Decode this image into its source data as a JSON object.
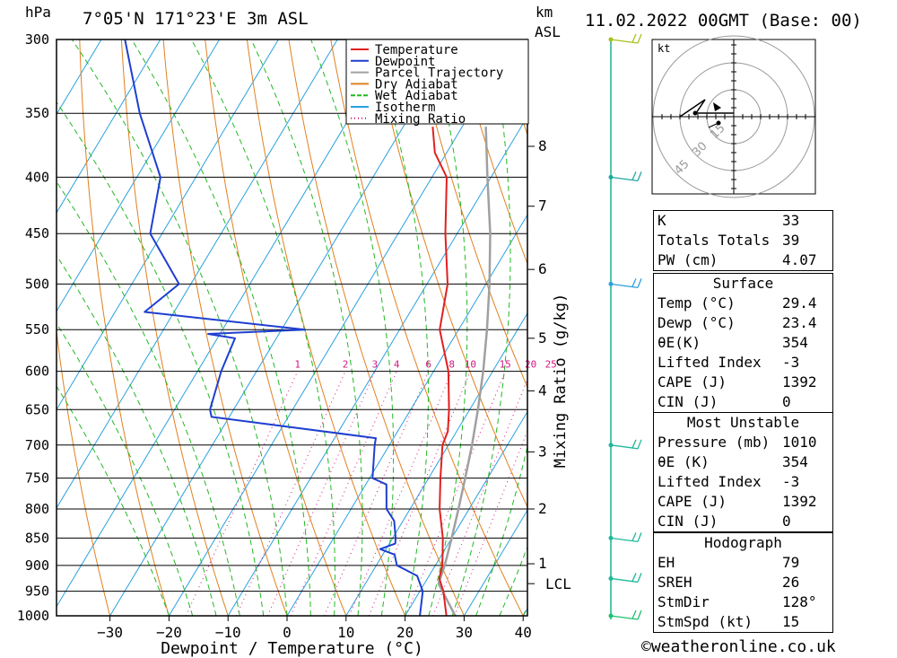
{
  "header": {
    "location": "7°05'N  171°23'E  3m  ASL",
    "date": "11.02.2022  00GMT  (Base: 00)",
    "hpa_label": "hPa",
    "km_label": "km",
    "asl_label": "ASL"
  },
  "chart_data": {
    "type": "skew-t",
    "xlabel": "Dewpoint / Temperature (°C)",
    "ylabel": "Mixing Ratio (g/kg)",
    "x_ticks": [
      -30,
      -20,
      -10,
      0,
      10,
      20,
      30,
      40
    ],
    "pressure_levels": [
      300,
      350,
      400,
      450,
      500,
      550,
      600,
      650,
      700,
      750,
      800,
      850,
      900,
      950,
      1000
    ],
    "km_ticks": [
      {
        "label": "8",
        "p": 375
      },
      {
        "label": "7",
        "p": 425
      },
      {
        "label": "6",
        "p": 485
      },
      {
        "label": "5",
        "p": 560
      },
      {
        "label": "4",
        "p": 625
      },
      {
        "label": "3",
        "p": 710
      },
      {
        "label": "2",
        "p": 800
      },
      {
        "label": "1",
        "p": 897
      }
    ],
    "lcl": {
      "label": "LCL",
      "p": 935
    },
    "mixing_ratio_labels": [
      "1",
      "2",
      "3",
      "4",
      "6",
      "8",
      "10",
      "15",
      "20",
      "25"
    ],
    "legend": [
      {
        "name": "Temperature",
        "color": "#e02020"
      },
      {
        "name": "Dewpoint",
        "color": "#1f3fd0"
      },
      {
        "name": "Parcel Trajectory",
        "color": "#a0a0a0"
      },
      {
        "name": "Dry Adiabat",
        "color": "#e08020"
      },
      {
        "name": "Wet Adiabat",
        "color": "#22b822"
      },
      {
        "name": "Isotherm",
        "color": "#2aa0e0"
      },
      {
        "name": "Mixing Ratio",
        "color": "#d01880"
      }
    ],
    "temperature": [
      {
        "p": 1010,
        "t": 29.4
      },
      {
        "p": 1000,
        "t": 27.0
      },
      {
        "p": 950,
        "t": 24.0
      },
      {
        "p": 925,
        "t": 22.0
      },
      {
        "p": 900,
        "t": 21.2
      },
      {
        "p": 850,
        "t": 18.5
      },
      {
        "p": 800,
        "t": 15.0
      },
      {
        "p": 750,
        "t": 12.0
      },
      {
        "p": 700,
        "t": 9.0
      },
      {
        "p": 680,
        "t": 8.5
      },
      {
        "p": 650,
        "t": 6.5
      },
      {
        "p": 600,
        "t": 2.5
      },
      {
        "p": 550,
        "t": -3.2
      },
      {
        "p": 500,
        "t": -6.5
      },
      {
        "p": 450,
        "t": -12.0
      },
      {
        "p": 400,
        "t": -17.5
      },
      {
        "p": 380,
        "t": -22.0
      },
      {
        "p": 360,
        "t": -25.0
      }
    ],
    "dewpoint": [
      {
        "p": 1010,
        "t": 23.4
      },
      {
        "p": 1000,
        "t": 22.5
      },
      {
        "p": 950,
        "t": 20.5
      },
      {
        "p": 920,
        "t": 18.0
      },
      {
        "p": 900,
        "t": 13.5
      },
      {
        "p": 880,
        "t": 12.0
      },
      {
        "p": 870,
        "t": 9.0
      },
      {
        "p": 860,
        "t": 11.0
      },
      {
        "p": 850,
        "t": 10.5
      },
      {
        "p": 820,
        "t": 8.5
      },
      {
        "p": 800,
        "t": 6.0
      },
      {
        "p": 760,
        "t": 3.5
      },
      {
        "p": 750,
        "t": 0.5
      },
      {
        "p": 700,
        "t": -2.5
      },
      {
        "p": 690,
        "t": -3.0
      },
      {
        "p": 660,
        "t": -33.0
      },
      {
        "p": 650,
        "t": -34.0
      },
      {
        "p": 600,
        "t": -36.0
      },
      {
        "p": 560,
        "t": -37.0
      },
      {
        "p": 555,
        "t": -42.0
      },
      {
        "p": 550,
        "t": -26.0
      },
      {
        "p": 530,
        "t": -55.0
      },
      {
        "p": 500,
        "t": -52.0
      },
      {
        "p": 450,
        "t": -62.0
      },
      {
        "p": 400,
        "t": -66.0
      },
      {
        "p": 350,
        "t": -76.0
      },
      {
        "p": 300,
        "t": -86.0
      }
    ],
    "parcel": [
      {
        "p": 1010,
        "t": 29.4
      },
      {
        "p": 935,
        "t": 22.4
      },
      {
        "p": 900,
        "t": 21.6
      },
      {
        "p": 850,
        "t": 20.0
      },
      {
        "p": 800,
        "t": 18.2
      },
      {
        "p": 750,
        "t": 16.2
      },
      {
        "p": 700,
        "t": 14.0
      },
      {
        "p": 650,
        "t": 11.4
      },
      {
        "p": 600,
        "t": 8.4
      },
      {
        "p": 550,
        "t": 4.8
      },
      {
        "p": 500,
        "t": 0.6
      },
      {
        "p": 450,
        "t": -4.4
      },
      {
        "p": 400,
        "t": -10.6
      },
      {
        "p": 360,
        "t": -16.0
      }
    ]
  },
  "winds": [
    {
      "p": 300,
      "color": "#a8c020"
    },
    {
      "p": 400,
      "color": "#20a8a0"
    },
    {
      "p": 500,
      "color": "#2aa0e0"
    },
    {
      "p": 700,
      "color": "#20b89a"
    },
    {
      "p": 850,
      "color": "#20b89a"
    },
    {
      "p": 925,
      "color": "#20b89a"
    },
    {
      "p": 1000,
      "color": "#20c070"
    }
  ],
  "hodograph": {
    "unit": "kt",
    "ring_labels": [
      "15",
      "30",
      "45"
    ]
  },
  "indices": {
    "k_label": "K",
    "k": "33",
    "tt_label": "Totals Totals",
    "tt": "39",
    "pw_label": "PW (cm)",
    "pw": "4.07"
  },
  "surface": {
    "title": "Surface",
    "temp_label": "Temp (°C)",
    "temp": "29.4",
    "dewp_label": "Dewp (°C)",
    "dewp": "23.4",
    "thetae_label": "θE(K)",
    "thetae": "354",
    "li_label": "Lifted Index",
    "li": "-3",
    "cape_label": "CAPE (J)",
    "cape": "1392",
    "cin_label": "CIN (J)",
    "cin": "0"
  },
  "most_unstable": {
    "title": "Most Unstable",
    "pressure_label": "Pressure (mb)",
    "pressure": "1010",
    "thetae_label": "θE (K)",
    "thetae": "354",
    "li_label": "Lifted Index",
    "li": "-3",
    "cape_label": "CAPE (J)",
    "cape": "1392",
    "cin_label": "CIN (J)",
    "cin": "0"
  },
  "hodograph_table": {
    "title": "Hodograph",
    "eh_label": "EH",
    "eh": "79",
    "sreh_label": "SREH",
    "sreh": "26",
    "stmdir_label": "StmDir",
    "stmdir": "128°",
    "stmspd_label": "StmSpd (kt)",
    "stmspd": "15"
  },
  "footer": "©weatheronline.co.uk"
}
